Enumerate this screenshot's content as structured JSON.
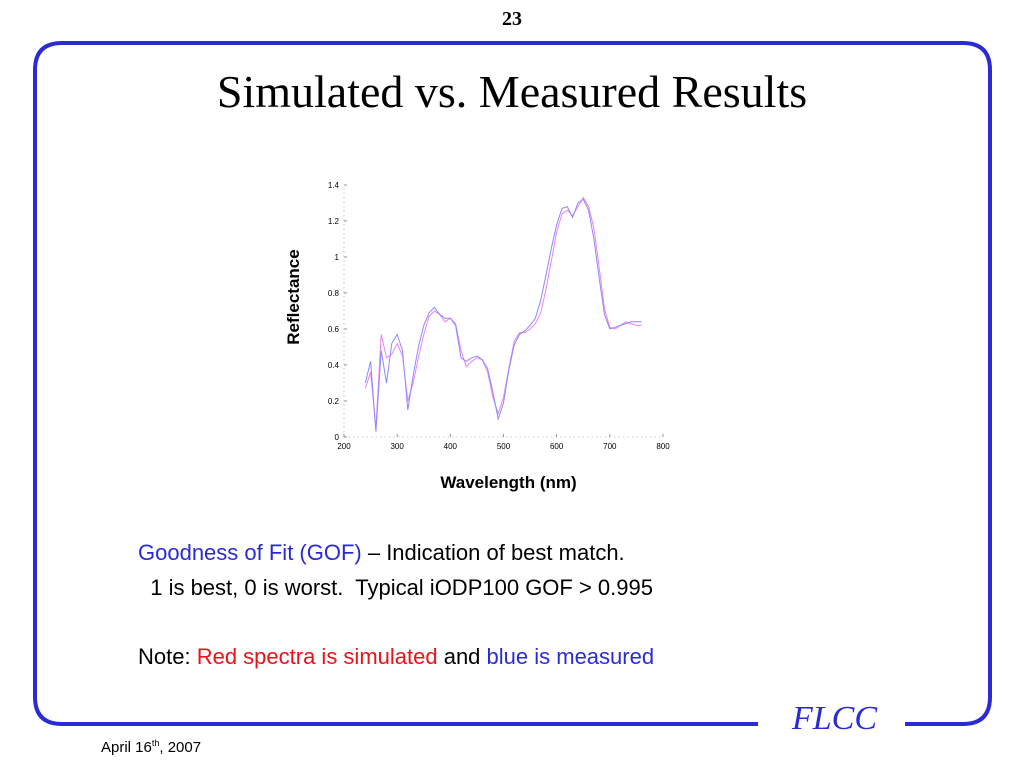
{
  "slide": {
    "page_number": "23",
    "title": "Simulated vs. Measured Results",
    "gof_label": "Goodness of Fit (GOF)",
    "gof_desc": " – Indication of best match.",
    "gof_line2": "  1 is best, 0 is worst.  Typical iODP100 GOF > 0.995",
    "note_prefix": "Note: ",
    "note_red": "Red spectra is simulated",
    "note_and": " and ",
    "note_blue": "blue is measured",
    "logo": "FLCC",
    "date_prefix": "April 16",
    "date_sup": "th",
    "date_suffix": ", 2007"
  },
  "colors": {
    "frame": "#2b2bd6",
    "simulated": "#ee82ee",
    "measured": "#8a8aff"
  },
  "chart_data": {
    "type": "line",
    "xlabel": "Wavelength (nm)",
    "ylabel": "Reflectance",
    "xlim": [
      200,
      800
    ],
    "ylim": [
      0,
      1.4
    ],
    "xticks": [
      200,
      300,
      400,
      500,
      600,
      700,
      800
    ],
    "yticks": [
      0,
      0.2,
      0.4,
      0.6,
      0.8,
      1,
      1.2,
      1.4
    ],
    "series": [
      {
        "color": "#ee82ee",
        "x": [
          240,
          250,
          260,
          270,
          280,
          290,
          300,
          310,
          320,
          330,
          340,
          350,
          360,
          370,
          380,
          390,
          400,
          410,
          420,
          430,
          440,
          450,
          460,
          470,
          480,
          490,
          500,
          510,
          520,
          530,
          540,
          550,
          560,
          570,
          580,
          590,
          600,
          610,
          620,
          630,
          640,
          650,
          660,
          670,
          680,
          690,
          700,
          710,
          720,
          730,
          740,
          750,
          760
        ],
        "y": [
          0.27,
          0.36,
          0.05,
          0.57,
          0.44,
          0.46,
          0.52,
          0.45,
          0.2,
          0.3,
          0.44,
          0.57,
          0.67,
          0.7,
          0.68,
          0.64,
          0.66,
          0.63,
          0.48,
          0.39,
          0.42,
          0.44,
          0.43,
          0.36,
          0.22,
          0.13,
          0.22,
          0.38,
          0.53,
          0.58,
          0.58,
          0.6,
          0.63,
          0.69,
          0.82,
          0.98,
          1.14,
          1.24,
          1.26,
          1.23,
          1.28,
          1.33,
          1.28,
          1.16,
          0.94,
          0.71,
          0.61,
          0.6,
          0.62,
          0.64,
          0.63,
          0.62,
          0.62
        ]
      },
      {
        "color": "#8a8aff",
        "x": [
          240,
          250,
          260,
          270,
          280,
          290,
          300,
          310,
          320,
          330,
          340,
          350,
          360,
          370,
          380,
          390,
          400,
          410,
          420,
          430,
          440,
          450,
          460,
          470,
          480,
          490,
          500,
          510,
          520,
          530,
          540,
          550,
          560,
          570,
          580,
          590,
          600,
          610,
          620,
          630,
          640,
          650,
          660,
          670,
          680,
          690,
          700,
          710,
          720,
          730,
          740,
          750,
          760
        ],
        "y": [
          0.3,
          0.42,
          0.03,
          0.48,
          0.3,
          0.52,
          0.57,
          0.48,
          0.15,
          0.34,
          0.5,
          0.62,
          0.69,
          0.72,
          0.68,
          0.66,
          0.66,
          0.62,
          0.44,
          0.42,
          0.44,
          0.45,
          0.43,
          0.38,
          0.25,
          0.1,
          0.19,
          0.37,
          0.51,
          0.57,
          0.59,
          0.62,
          0.66,
          0.76,
          0.9,
          1.05,
          1.18,
          1.27,
          1.28,
          1.22,
          1.3,
          1.32,
          1.26,
          1.1,
          0.88,
          0.68,
          0.6,
          0.61,
          0.62,
          0.63,
          0.64,
          0.64,
          0.64
        ]
      }
    ]
  }
}
